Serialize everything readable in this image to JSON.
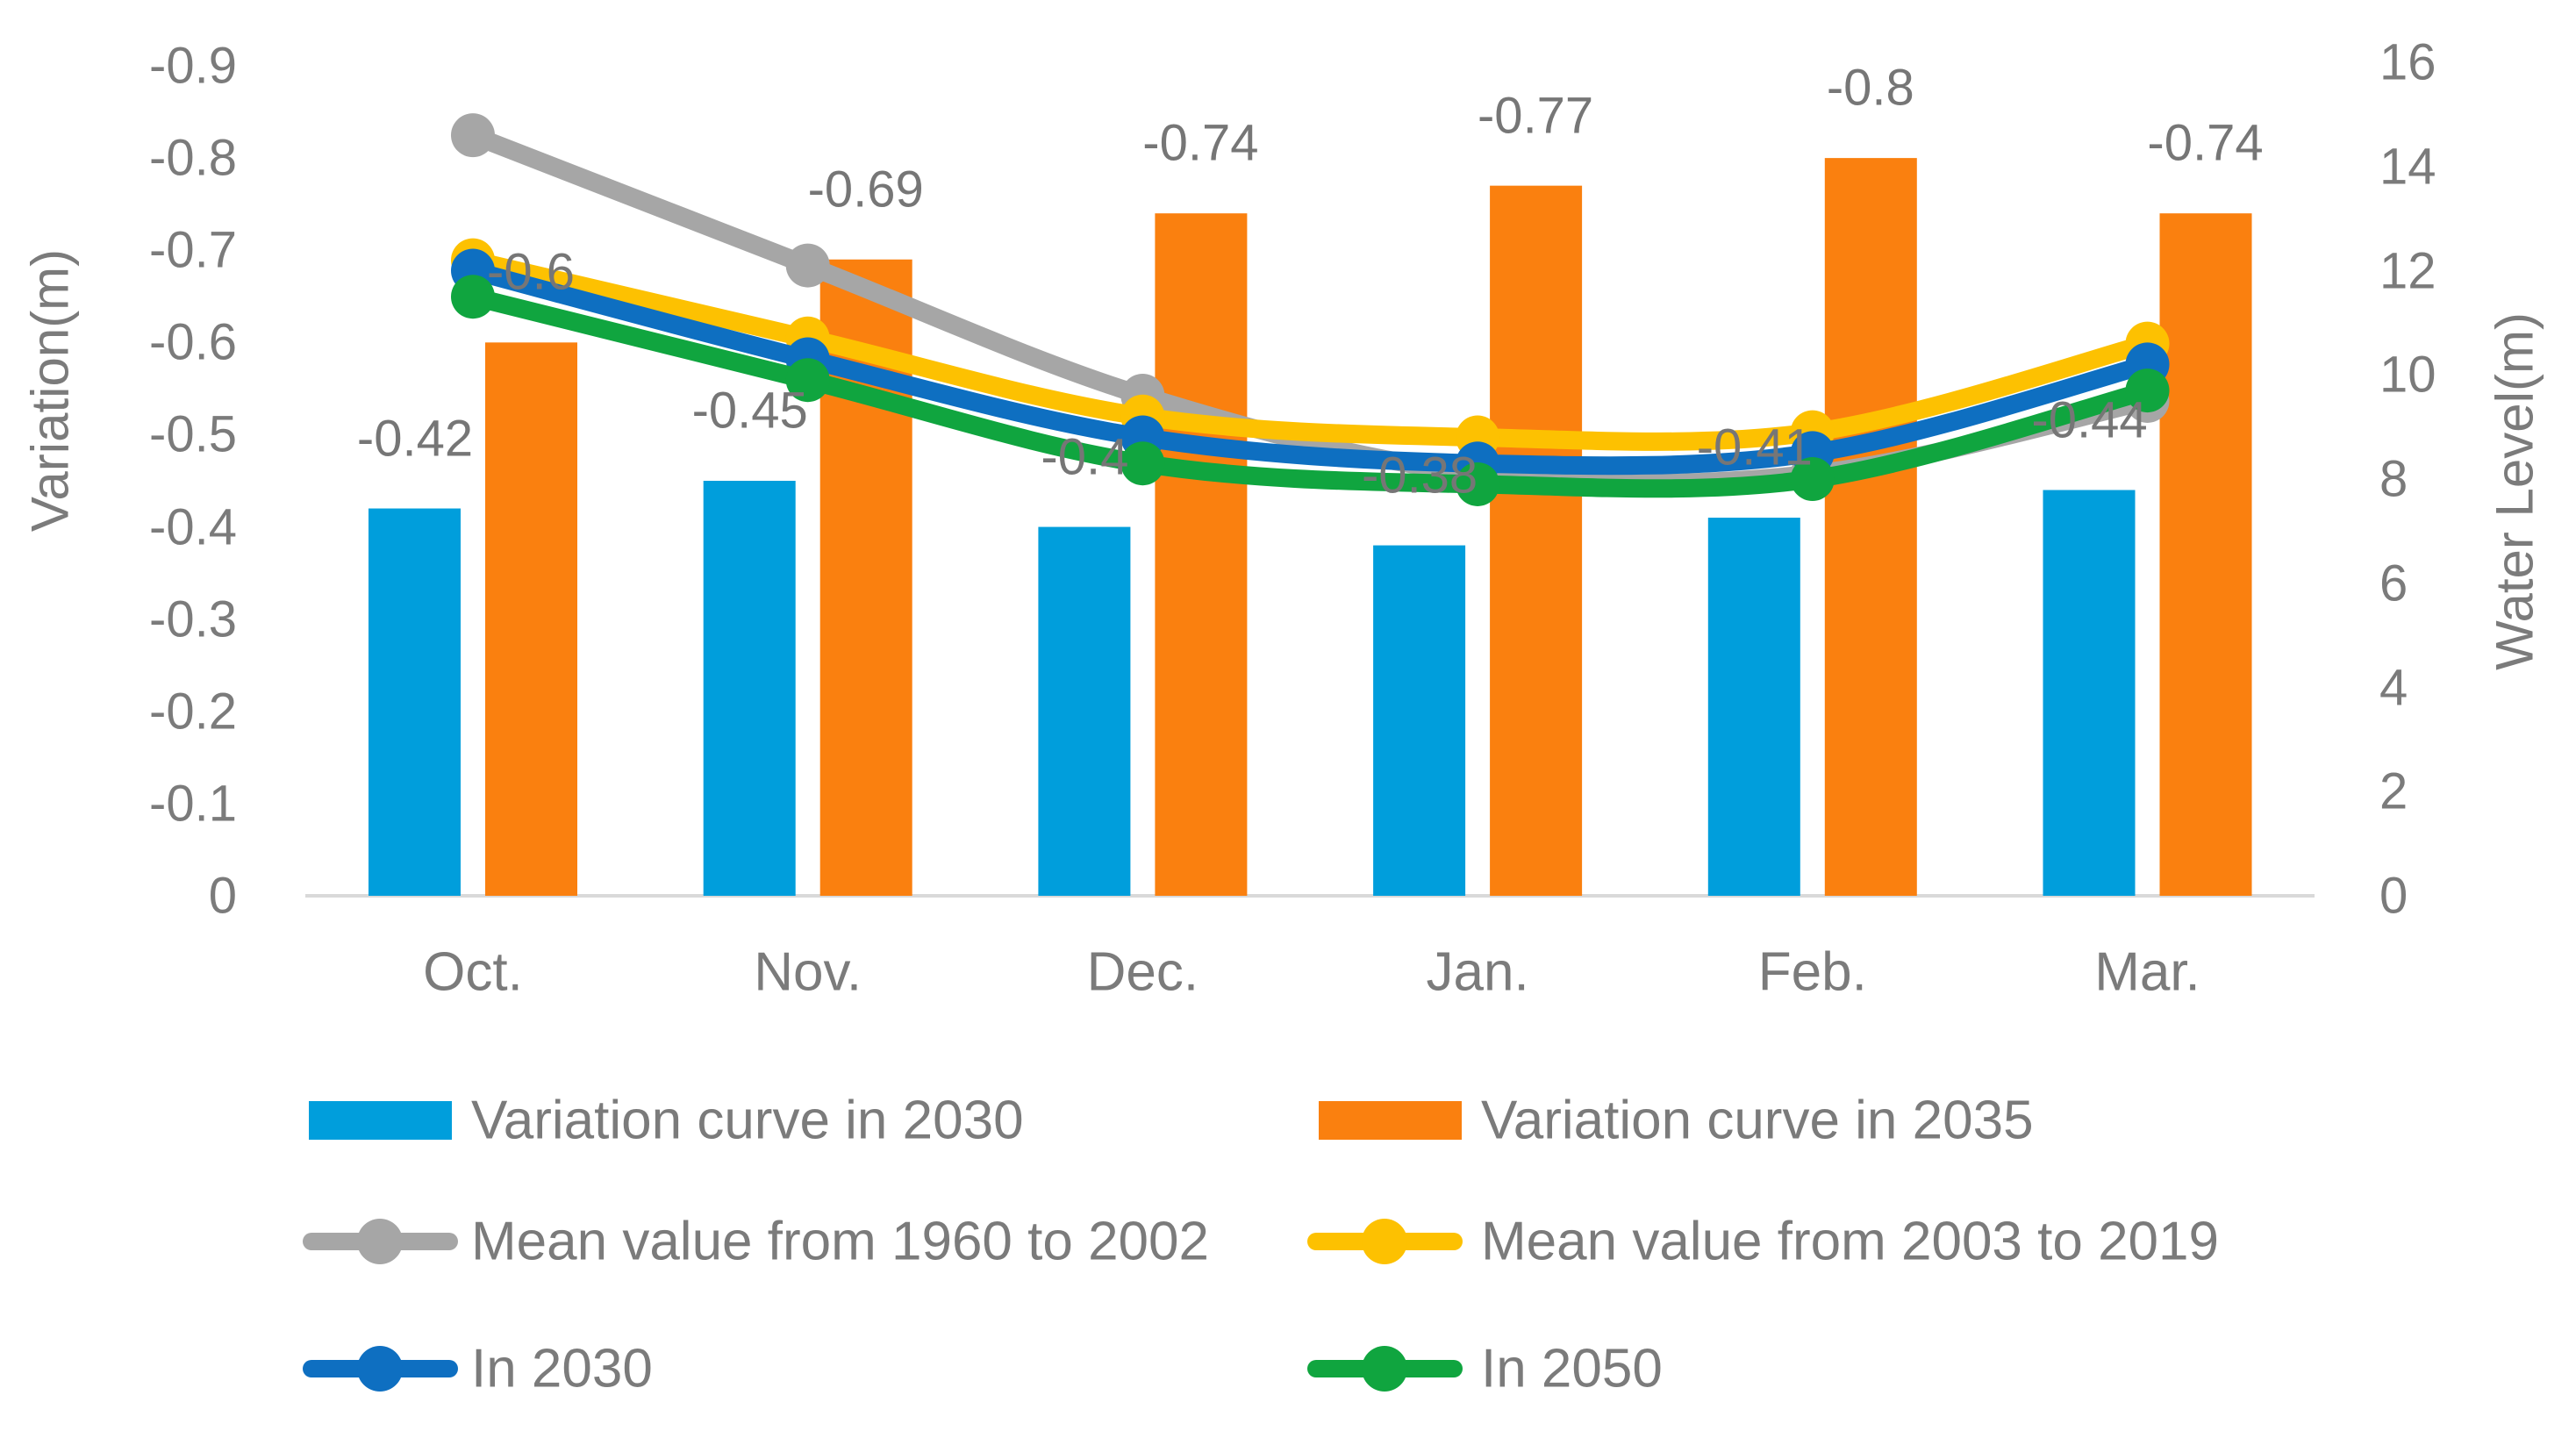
{
  "chart_data": {
    "type": "combo",
    "categories": [
      "Oct.",
      "Nov.",
      "Dec.",
      "Jan.",
      "Feb.",
      "Mar."
    ],
    "left_axis": {
      "title": "Variation(m)",
      "ticks": [
        "-0.9",
        "-0.8",
        "-0.7",
        "-0.6",
        "-0.5",
        "-0.4",
        "-0.3",
        "-0.2",
        "-0.1",
        "0"
      ],
      "range": [
        0,
        -0.9
      ],
      "inverted": true,
      "grid": false
    },
    "right_axis": {
      "title": "Water Level(m)",
      "ticks": [
        "16",
        "14",
        "12",
        "10",
        "8",
        "6",
        "4",
        "2",
        "0"
      ],
      "range": [
        0,
        16
      ],
      "grid": false
    },
    "bar_series": [
      {
        "name": "Variation curve in 2030",
        "type": "bar",
        "axis": "left",
        "color": "#009EDC",
        "values": [
          -0.42,
          -0.45,
          -0.4,
          -0.38,
          -0.41,
          -0.44
        ],
        "labels": [
          "-0.42",
          "-0.45",
          "-0.4",
          "-0.38",
          "-0.41",
          "-0.44"
        ]
      },
      {
        "name": "Variation curve in 2035",
        "type": "bar",
        "axis": "left",
        "color": "#FA800F",
        "values": [
          -0.6,
          -0.69,
          -0.74,
          -0.77,
          -0.8,
          -0.74
        ],
        "labels": [
          "-0.6",
          "-0.69",
          "-0.74",
          "-0.77",
          "-0.8",
          "-0.74"
        ]
      }
    ],
    "line_series": [
      {
        "name": "Mean value from 1960 to 2002",
        "type": "line",
        "axis": "right",
        "color": "#A6A6A6",
        "values": [
          14.6,
          12.1,
          9.6,
          8.1,
          8.1,
          9.5
        ]
      },
      {
        "name": "Mean value from 2003 to 2019",
        "type": "line",
        "axis": "right",
        "color": "#FDC101",
        "values": [
          12.2,
          10.7,
          9.2,
          8.8,
          8.9,
          10.6
        ]
      },
      {
        "name": "In 2030",
        "type": "line",
        "axis": "right",
        "color": "#0E6FC1",
        "values": [
          12.0,
          10.3,
          8.8,
          8.3,
          8.5,
          10.2
        ]
      },
      {
        "name": "In 2050",
        "type": "line",
        "axis": "right",
        "color": "#10A53F",
        "values": [
          11.5,
          9.9,
          8.3,
          7.9,
          8.0,
          9.7
        ]
      }
    ],
    "legend": {
      "position": "bottom",
      "items": [
        {
          "label": "Variation curve in 2030",
          "type": "bar",
          "color": "#009EDC"
        },
        {
          "label": "Variation curve in 2035",
          "type": "bar",
          "color": "#FA800F"
        },
        {
          "label": "Mean value from 1960 to 2002",
          "type": "line",
          "color": "#A6A6A6"
        },
        {
          "label": "Mean value from 2003 to 2019",
          "type": "line",
          "color": "#FDC101"
        },
        {
          "label": "In 2030",
          "type": "line",
          "color": "#0E6FC1"
        },
        {
          "label": "In 2050",
          "type": "line",
          "color": "#10A53F"
        }
      ]
    },
    "colors": {
      "text": "#7B7B7B",
      "data_label_text": "#767676",
      "axis_line": "#D9D9D9"
    }
  }
}
